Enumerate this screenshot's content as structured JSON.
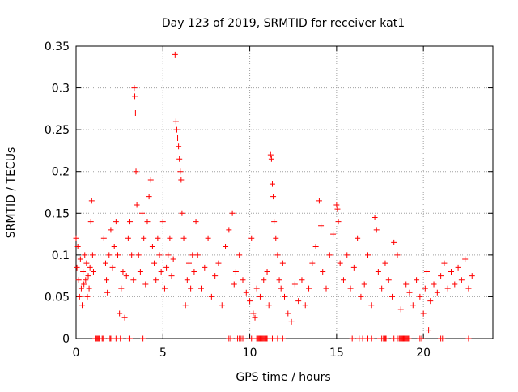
{
  "chart_data": {
    "type": "scatter",
    "title": "Day 123 of 2019, SRMTID for receiver kat1",
    "xlabel": "GPS time / hours",
    "ylabel": "SRMTID / TECUs",
    "xlim": [
      0,
      24
    ],
    "ylim": [
      0,
      0.35
    ],
    "xticks": [
      0,
      5,
      10,
      15,
      20
    ],
    "yticks": [
      0,
      0.05,
      0.1,
      0.15,
      0.2,
      0.25,
      0.3,
      0.35
    ],
    "ytick_labels": [
      "0",
      "0.05",
      "0.1",
      "0.15",
      "0.2",
      "0.25",
      "0.3",
      "0.35"
    ],
    "grid": true,
    "marker": "+",
    "color": "#ff0000",
    "series": [
      {
        "name": "SRMTID",
        "points": [
          [
            0.0,
            0.12
          ],
          [
            0.05,
            0.085
          ],
          [
            0.1,
            0.11
          ],
          [
            0.15,
            0.07
          ],
          [
            0.2,
            0.05
          ],
          [
            0.25,
            0.095
          ],
          [
            0.3,
            0.06
          ],
          [
            0.35,
            0.04
          ],
          [
            0.4,
            0.08
          ],
          [
            0.45,
            0.065
          ],
          [
            0.5,
            0.1
          ],
          [
            0.55,
            0.07
          ],
          [
            0.6,
            0.09
          ],
          [
            0.65,
            0.05
          ],
          [
            0.7,
            0.075
          ],
          [
            0.75,
            0.06
          ],
          [
            0.8,
            0.085
          ],
          [
            0.85,
            0.14
          ],
          [
            0.9,
            0.165
          ],
          [
            0.95,
            0.1
          ],
          [
            1.0,
            0.08
          ],
          [
            1.6,
            0.12
          ],
          [
            1.7,
            0.09
          ],
          [
            1.75,
            0.07
          ],
          [
            1.8,
            0.055
          ],
          [
            1.9,
            0.1
          ],
          [
            2.0,
            0.13
          ],
          [
            2.1,
            0.085
          ],
          [
            2.2,
            0.11
          ],
          [
            2.3,
            0.14
          ],
          [
            2.4,
            0.1
          ],
          [
            2.5,
            0.03
          ],
          [
            2.6,
            0.06
          ],
          [
            2.7,
            0.08
          ],
          [
            2.8,
            0.025
          ],
          [
            2.9,
            0.075
          ],
          [
            3.0,
            0.12
          ],
          [
            3.1,
            0.14
          ],
          [
            3.2,
            0.1
          ],
          [
            3.3,
            0.07
          ],
          [
            3.35,
            0.3
          ],
          [
            3.38,
            0.29
          ],
          [
            3.42,
            0.27
          ],
          [
            3.45,
            0.2
          ],
          [
            3.5,
            0.16
          ],
          [
            3.6,
            0.1
          ],
          [
            3.7,
            0.08
          ],
          [
            3.8,
            0.15
          ],
          [
            3.9,
            0.12
          ],
          [
            4.0,
            0.065
          ],
          [
            4.1,
            0.14
          ],
          [
            4.2,
            0.17
          ],
          [
            4.3,
            0.19
          ],
          [
            4.4,
            0.11
          ],
          [
            4.5,
            0.09
          ],
          [
            4.6,
            0.07
          ],
          [
            4.7,
            0.12
          ],
          [
            4.8,
            0.1
          ],
          [
            4.9,
            0.08
          ],
          [
            5.0,
            0.14
          ],
          [
            5.1,
            0.06
          ],
          [
            5.2,
            0.085
          ],
          [
            5.3,
            0.1
          ],
          [
            5.4,
            0.12
          ],
          [
            5.5,
            0.075
          ],
          [
            5.6,
            0.095
          ],
          [
            5.7,
            0.34
          ],
          [
            5.75,
            0.26
          ],
          [
            5.8,
            0.25
          ],
          [
            5.85,
            0.24
          ],
          [
            5.9,
            0.23
          ],
          [
            5.95,
            0.215
          ],
          [
            6.0,
            0.2
          ],
          [
            6.05,
            0.19
          ],
          [
            6.1,
            0.15
          ],
          [
            6.2,
            0.12
          ],
          [
            6.3,
            0.04
          ],
          [
            6.4,
            0.07
          ],
          [
            6.5,
            0.09
          ],
          [
            6.6,
            0.06
          ],
          [
            6.7,
            0.1
          ],
          [
            6.8,
            0.08
          ],
          [
            6.9,
            0.14
          ],
          [
            7.0,
            0.1
          ],
          [
            7.2,
            0.06
          ],
          [
            7.4,
            0.085
          ],
          [
            7.6,
            0.12
          ],
          [
            7.8,
            0.05
          ],
          [
            8.0,
            0.075
          ],
          [
            8.2,
            0.09
          ],
          [
            8.4,
            0.04
          ],
          [
            8.6,
            0.11
          ],
          [
            8.8,
            0.13
          ],
          [
            9.0,
            0.15
          ],
          [
            9.1,
            0.065
          ],
          [
            9.2,
            0.08
          ],
          [
            9.4,
            0.1
          ],
          [
            9.6,
            0.07
          ],
          [
            9.8,
            0.055
          ],
          [
            10.0,
            0.045
          ],
          [
            10.1,
            0.12
          ],
          [
            10.2,
            0.03
          ],
          [
            10.3,
            0.025
          ],
          [
            10.4,
            0.06
          ],
          [
            10.6,
            0.05
          ],
          [
            10.8,
            0.07
          ],
          [
            11.0,
            0.08
          ],
          [
            11.1,
            0.04
          ],
          [
            11.2,
            0.22
          ],
          [
            11.25,
            0.215
          ],
          [
            11.3,
            0.185
          ],
          [
            11.35,
            0.17
          ],
          [
            11.4,
            0.14
          ],
          [
            11.5,
            0.12
          ],
          [
            11.6,
            0.1
          ],
          [
            11.7,
            0.07
          ],
          [
            11.8,
            0.06
          ],
          [
            11.9,
            0.09
          ],
          [
            12.0,
            0.05
          ],
          [
            12.2,
            0.03
          ],
          [
            12.4,
            0.02
          ],
          [
            12.6,
            0.065
          ],
          [
            12.8,
            0.045
          ],
          [
            13.0,
            0.07
          ],
          [
            13.2,
            0.04
          ],
          [
            13.4,
            0.06
          ],
          [
            13.6,
            0.09
          ],
          [
            13.8,
            0.11
          ],
          [
            14.0,
            0.165
          ],
          [
            14.1,
            0.135
          ],
          [
            14.2,
            0.08
          ],
          [
            14.4,
            0.06
          ],
          [
            14.6,
            0.1
          ],
          [
            14.8,
            0.125
          ],
          [
            15.0,
            0.16
          ],
          [
            15.05,
            0.155
          ],
          [
            15.1,
            0.14
          ],
          [
            15.2,
            0.09
          ],
          [
            15.4,
            0.07
          ],
          [
            15.6,
            0.1
          ],
          [
            15.8,
            0.06
          ],
          [
            16.0,
            0.085
          ],
          [
            16.2,
            0.12
          ],
          [
            16.4,
            0.05
          ],
          [
            16.6,
            0.065
          ],
          [
            16.8,
            0.1
          ],
          [
            17.0,
            0.04
          ],
          [
            17.2,
            0.145
          ],
          [
            17.3,
            0.13
          ],
          [
            17.4,
            0.08
          ],
          [
            17.6,
            0.06
          ],
          [
            17.8,
            0.09
          ],
          [
            18.0,
            0.07
          ],
          [
            18.2,
            0.05
          ],
          [
            18.3,
            0.115
          ],
          [
            18.5,
            0.1
          ],
          [
            18.7,
            0.035
          ],
          [
            19.0,
            0.065
          ],
          [
            19.2,
            0.055
          ],
          [
            19.4,
            0.04
          ],
          [
            19.6,
            0.07
          ],
          [
            19.8,
            0.05
          ],
          [
            20.0,
            0.03
          ],
          [
            20.1,
            0.06
          ],
          [
            20.2,
            0.08
          ],
          [
            20.3,
            0.01
          ],
          [
            20.4,
            0.045
          ],
          [
            20.6,
            0.065
          ],
          [
            20.8,
            0.055
          ],
          [
            21.0,
            0.075
          ],
          [
            21.2,
            0.09
          ],
          [
            21.4,
            0.06
          ],
          [
            21.6,
            0.08
          ],
          [
            21.8,
            0.065
          ],
          [
            22.0,
            0.085
          ],
          [
            22.2,
            0.07
          ],
          [
            22.4,
            0.095
          ],
          [
            22.6,
            0.06
          ],
          [
            22.8,
            0.075
          ],
          [
            1.1,
            0
          ],
          [
            1.15,
            0
          ],
          [
            1.2,
            0
          ],
          [
            1.25,
            0
          ],
          [
            1.3,
            0
          ],
          [
            1.35,
            0
          ],
          [
            1.5,
            0
          ],
          [
            1.55,
            0
          ],
          [
            1.95,
            0
          ],
          [
            2.0,
            0
          ],
          [
            2.3,
            0
          ],
          [
            2.55,
            0
          ],
          [
            3.05,
            0
          ],
          [
            3.1,
            0
          ],
          [
            3.85,
            0
          ],
          [
            8.8,
            0
          ],
          [
            8.9,
            0
          ],
          [
            9.3,
            0
          ],
          [
            9.4,
            0
          ],
          [
            9.5,
            0
          ],
          [
            9.6,
            0
          ],
          [
            10.1,
            0
          ],
          [
            10.4,
            0
          ],
          [
            10.45,
            0
          ],
          [
            10.5,
            0
          ],
          [
            10.55,
            0
          ],
          [
            10.6,
            0
          ],
          [
            10.65,
            0
          ],
          [
            10.7,
            0
          ],
          [
            10.75,
            0
          ],
          [
            10.8,
            0
          ],
          [
            10.85,
            0
          ],
          [
            10.9,
            0
          ],
          [
            10.95,
            0
          ],
          [
            11.0,
            0
          ],
          [
            11.3,
            0
          ],
          [
            11.6,
            0
          ],
          [
            11.9,
            0
          ],
          [
            15.9,
            0
          ],
          [
            16.3,
            0
          ],
          [
            16.5,
            0
          ],
          [
            16.8,
            0
          ],
          [
            17.0,
            0
          ],
          [
            17.5,
            0
          ],
          [
            17.6,
            0
          ],
          [
            17.7,
            0
          ],
          [
            17.75,
            0
          ],
          [
            17.8,
            0
          ],
          [
            17.85,
            0
          ],
          [
            18.3,
            0
          ],
          [
            18.5,
            0
          ],
          [
            18.6,
            0
          ],
          [
            18.65,
            0
          ],
          [
            18.7,
            0
          ],
          [
            18.75,
            0
          ],
          [
            18.8,
            0
          ],
          [
            18.85,
            0
          ],
          [
            18.9,
            0
          ],
          [
            18.95,
            0
          ],
          [
            19.0,
            0
          ],
          [
            19.05,
            0
          ],
          [
            19.1,
            0
          ],
          [
            19.15,
            0
          ],
          [
            19.8,
            0
          ],
          [
            19.9,
            0
          ],
          [
            21.0,
            0
          ],
          [
            21.1,
            0
          ],
          [
            22.6,
            0
          ]
        ]
      }
    ]
  }
}
